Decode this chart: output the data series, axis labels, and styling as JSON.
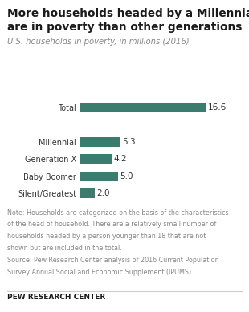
{
  "title_line1": "More households headed by a Millennial",
  "title_line2": "are in poverty than other generations",
  "subtitle": "U.S. households in poverty, in millions (2016)",
  "categories": [
    "Total",
    "Millennial",
    "Generation X",
    "Baby Boomer",
    "Silent/Greatest"
  ],
  "values": [
    16.6,
    5.3,
    4.2,
    5.0,
    2.0
  ],
  "bar_color": "#3a7d6e",
  "xlim": [
    0,
    19
  ],
  "note_line1": "Note: Households are categorized on the basis of the characteristics",
  "note_line2": "of the head of household. There are a relatively small number of",
  "note_line3": "households headed by a person younger than 18 that are not",
  "note_line4": "shown but are included in the total.",
  "note_line5": "Source: Pew Research Center analysis of 2016 Current Population",
  "note_line6": "Survey Annual Social and Economic Supplement (IPUMS).",
  "footer": "PEW RESEARCH CENTER",
  "title_color": "#1a1a1a",
  "subtitle_color": "#888888",
  "note_color": "#888888",
  "footer_color": "#1a1a1a",
  "bg_color": "#ffffff",
  "value_label_color": "#333333"
}
